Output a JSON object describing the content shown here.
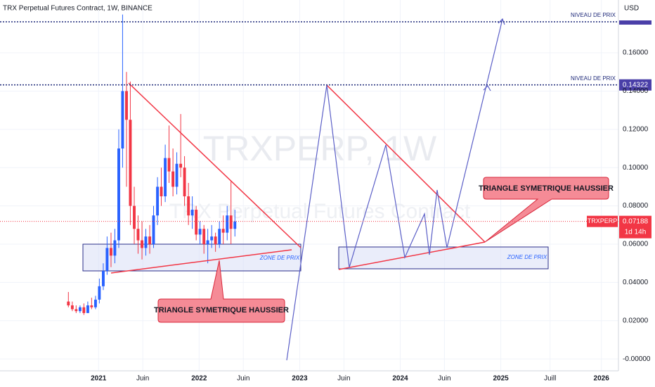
{
  "chart_data": {
    "type": "candlestick",
    "title": "TRX Perpetual Futures Contract, 1W, BINANCE",
    "watermark_symbol": "TRXPERP, 1W",
    "watermark_name": "TRX Perpetual Futures Contract",
    "currency": "USD",
    "x": [
      2020.7,
      2020.739,
      2020.777,
      2020.816,
      2020.854,
      2020.893,
      2020.931,
      2020.97,
      2021.008,
      2021.047,
      2021.085,
      2021.124,
      2021.162,
      2021.201,
      2021.239,
      2021.278,
      2021.316,
      2021.355,
      2021.393,
      2021.432,
      2021.47,
      2021.509,
      2021.547,
      2021.586,
      2021.624,
      2021.663,
      2021.701,
      2021.74,
      2021.778,
      2021.817,
      2021.855,
      2021.894,
      2021.932,
      2021.971,
      2022.009,
      2022.048,
      2022.086,
      2022.125,
      2022.163,
      2022.202,
      2022.24,
      2022.279,
      2022.317,
      2022.356
    ],
    "open": [
      0.03,
      0.028,
      0.026,
      0.025,
      0.027,
      0.024,
      0.028,
      0.027,
      0.031,
      0.038,
      0.046,
      0.058,
      0.054,
      0.062,
      0.11,
      0.14,
      0.125,
      0.08,
      0.068,
      0.062,
      0.058,
      0.064,
      0.06,
      0.075,
      0.09,
      0.085,
      0.105,
      0.098,
      0.09,
      0.102,
      0.1,
      0.085,
      0.075,
      0.078,
      0.065,
      0.068,
      0.06,
      0.062,
      0.064,
      0.06,
      0.068,
      0.066,
      0.075,
      0.068
    ],
    "high": [
      0.035,
      0.03,
      0.028,
      0.028,
      0.029,
      0.03,
      0.032,
      0.033,
      0.042,
      0.05,
      0.064,
      0.066,
      0.068,
      0.12,
      0.18,
      0.15,
      0.145,
      0.09,
      0.075,
      0.072,
      0.068,
      0.07,
      0.08,
      0.095,
      0.1,
      0.112,
      0.122,
      0.11,
      0.108,
      0.128,
      0.106,
      0.092,
      0.085,
      0.08,
      0.072,
      0.07,
      0.068,
      0.07,
      0.066,
      0.072,
      0.075,
      0.08,
      0.093,
      0.078
    ],
    "low": [
      0.027,
      0.025,
      0.024,
      0.024,
      0.023,
      0.024,
      0.026,
      0.026,
      0.029,
      0.036,
      0.044,
      0.048,
      0.05,
      0.058,
      0.1,
      0.09,
      0.07,
      0.06,
      0.055,
      0.052,
      0.054,
      0.055,
      0.058,
      0.07,
      0.08,
      0.082,
      0.092,
      0.085,
      0.086,
      0.095,
      0.08,
      0.07,
      0.068,
      0.062,
      0.06,
      0.055,
      0.05,
      0.058,
      0.056,
      0.058,
      0.06,
      0.062,
      0.06,
      0.064
    ],
    "close": [
      0.028,
      0.026,
      0.025,
      0.027,
      0.024,
      0.028,
      0.027,
      0.031,
      0.038,
      0.046,
      0.058,
      0.054,
      0.062,
      0.11,
      0.14,
      0.125,
      0.08,
      0.068,
      0.062,
      0.058,
      0.064,
      0.06,
      0.075,
      0.09,
      0.085,
      0.105,
      0.098,
      0.09,
      0.102,
      0.1,
      0.085,
      0.075,
      0.078,
      0.065,
      0.068,
      0.06,
      0.062,
      0.064,
      0.06,
      0.068,
      0.066,
      0.075,
      0.068,
      0.07188
    ],
    "up_color": "#2962ff",
    "down_color": "#f23645",
    "xlim": [
      2020.02,
      2026.17
    ],
    "ylim": [
      -0.0062,
      0.1876
    ],
    "grid": true,
    "xticks": [
      2021,
      {
        "value": 2021.44,
        "label": "Juin"
      },
      2022,
      {
        "value": 2022.44,
        "label": "Juin"
      },
      2023,
      {
        "value": 2023.44,
        "label": "Juin"
      },
      2024,
      {
        "value": 2024.44,
        "label": "Juin"
      },
      2025,
      {
        "value": 2025.49,
        "label": "Juill"
      },
      2026
    ],
    "yticks": [
      {
        "value": 0,
        "label": "-0.00000"
      },
      {
        "value": 0.02,
        "label": "0.02000"
      },
      {
        "value": 0.04,
        "label": "0.04000"
      },
      {
        "value": 0.06,
        "label": "0.06000"
      },
      {
        "value": 0.08,
        "label": "0.08000"
      },
      {
        "value": 0.1,
        "label": "0.10000"
      },
      {
        "value": 0.12,
        "label": "0.12000"
      },
      {
        "value": 0.14,
        "label": "0.14000"
      },
      {
        "value": 0.16,
        "label": "0.16000"
      }
    ],
    "symbol_badge": "TRXPERP",
    "countdown": "1d 14h",
    "levels": [
      {
        "label": "NIVEAU DE PRIX",
        "value": 0.1762
      },
      {
        "label": "NIVEAU DE PRIX",
        "value": 0.14322
      }
    ],
    "annotations": {
      "zone_left": "ZONE DE PRIX",
      "zone_right": "ZONE DE PRIX",
      "callout_left": "TRIANGLE SYMETRIQUE HAUSSIER",
      "callout_right": "TRIANGLE SYMETRIQUE HAUSSIER"
    }
  }
}
